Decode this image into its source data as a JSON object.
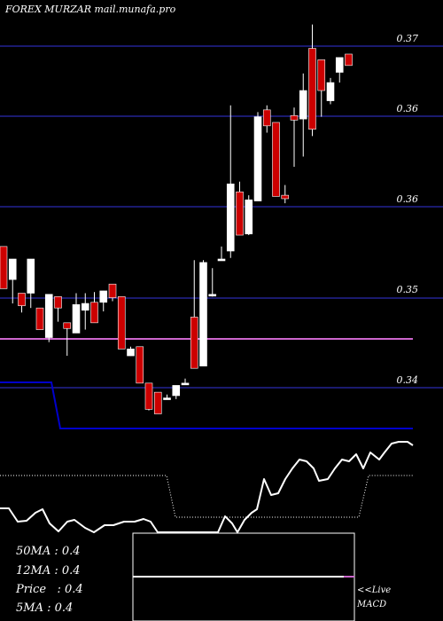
{
  "title": "FOREX  MURZAR mail.munafa.pro",
  "price_axis_labels": [
    "0.37",
    "0.36",
    "0.36",
    "0.35",
    "0.34"
  ],
  "ma_legend": [
    {
      "name": "50MA",
      "value": ": 0.4"
    },
    {
      "name": "12MA",
      "value": ": 0.4"
    },
    {
      "name": "Price",
      "value": "  : 0.4"
    },
    {
      "name": "5MA",
      "value": ": 0.4"
    }
  ],
  "macd_text": {
    "live": "<<Live",
    "label": "MACD"
  },
  "colors": {
    "background": "#000000",
    "up_candle": "#ffffff",
    "down_candle": "#cc0000",
    "grid": "#1a1a6e",
    "ma_magenta": "#cc66cc",
    "ma_blue": "#0000cc",
    "indicator_line": "#ffffff"
  },
  "chart_data": {
    "type": "candlestick",
    "price_levels": [
      0.37,
      0.36,
      0.36,
      0.35,
      0.34
    ],
    "magenta_line_level": 0.345,
    "candles": [
      {
        "o": 0.3524,
        "h": 0.3524,
        "l": 0.3487,
        "c": 0.3487
      },
      {
        "o": 0.3495,
        "h": 0.3513,
        "l": 0.3474,
        "c": 0.3513
      },
      {
        "o": 0.3483,
        "h": 0.3483,
        "l": 0.3466,
        "c": 0.3472
      },
      {
        "o": 0.3483,
        "h": 0.3513,
        "l": 0.347,
        "c": 0.3513
      },
      {
        "o": 0.347,
        "h": 0.347,
        "l": 0.3451,
        "c": 0.3451
      },
      {
        "o": 0.3444,
        "h": 0.3482,
        "l": 0.344,
        "c": 0.3482
      },
      {
        "o": 0.348,
        "h": 0.348,
        "l": 0.3458,
        "c": 0.347
      },
      {
        "o": 0.3457,
        "h": 0.3457,
        "l": 0.3428,
        "c": 0.3452
      },
      {
        "o": 0.3448,
        "h": 0.3483,
        "l": 0.3448,
        "c": 0.3473
      },
      {
        "o": 0.3468,
        "h": 0.3483,
        "l": 0.3451,
        "c": 0.3474
      },
      {
        "o": 0.3475,
        "h": 0.3484,
        "l": 0.3457,
        "c": 0.3457
      },
      {
        "o": 0.3475,
        "h": 0.3485,
        "l": 0.3467,
        "c": 0.3485
      },
      {
        "o": 0.3491,
        "h": 0.3491,
        "l": 0.3476,
        "c": 0.3479
      },
      {
        "o": 0.348,
        "h": 0.348,
        "l": 0.3434,
        "c": 0.3434
      },
      {
        "o": 0.3428,
        "h": 0.3436,
        "l": 0.3428,
        "c": 0.3434
      },
      {
        "o": 0.3436,
        "h": 0.3436,
        "l": 0.3404,
        "c": 0.3404
      },
      {
        "o": 0.3404,
        "h": 0.3404,
        "l": 0.338,
        "c": 0.3381
      },
      {
        "o": 0.3396,
        "h": 0.3396,
        "l": 0.3377,
        "c": 0.3377
      },
      {
        "o": 0.3391,
        "h": 0.3394,
        "l": 0.339,
        "c": 0.3391
      },
      {
        "o": 0.3393,
        "h": 0.3402,
        "l": 0.339,
        "c": 0.3402
      },
      {
        "o": 0.3404,
        "h": 0.3408,
        "l": 0.3404,
        "c": 0.3404
      },
      {
        "o": 0.3462,
        "h": 0.3512,
        "l": 0.3417,
        "c": 0.3417
      },
      {
        "o": 0.3419,
        "h": 0.3512,
        "l": 0.3419,
        "c": 0.351
      },
      {
        "o": 0.3482,
        "h": 0.3505,
        "l": 0.348,
        "c": 0.3482
      },
      {
        "o": 0.3513,
        "h": 0.3524,
        "l": 0.3512,
        "c": 0.3513
      },
      {
        "o": 0.352,
        "h": 0.3648,
        "l": 0.3514,
        "c": 0.3579
      },
      {
        "o": 0.3572,
        "h": 0.3581,
        "l": 0.3534,
        "c": 0.3534
      },
      {
        "o": 0.3535,
        "h": 0.3569,
        "l": 0.3534,
        "c": 0.3565
      },
      {
        "o": 0.3564,
        "h": 0.3642,
        "l": 0.3564,
        "c": 0.3638
      },
      {
        "o": 0.3644,
        "h": 0.3648,
        "l": 0.3624,
        "c": 0.363
      },
      {
        "o": 0.3633,
        "h": 0.3633,
        "l": 0.3568,
        "c": 0.3568
      },
      {
        "o": 0.3569,
        "h": 0.3578,
        "l": 0.3562,
        "c": 0.3566
      },
      {
        "o": 0.3639,
        "h": 0.3646,
        "l": 0.3594,
        "c": 0.3635
      },
      {
        "o": 0.3636,
        "h": 0.3676,
        "l": 0.3603,
        "c": 0.3661
      },
      {
        "o": 0.3698,
        "h": 0.3719,
        "l": 0.3621,
        "c": 0.3627
      },
      {
        "o": 0.3688,
        "h": 0.3688,
        "l": 0.3638,
        "c": 0.3661
      },
      {
        "o": 0.3652,
        "h": 0.3672,
        "l": 0.3649,
        "c": 0.3668
      },
      {
        "o": 0.3677,
        "h": 0.369,
        "l": 0.3668,
        "c": 0.369
      },
      {
        "o": 0.3693,
        "h": 0.3693,
        "l": 0.3683,
        "c": 0.3683
      }
    ]
  }
}
